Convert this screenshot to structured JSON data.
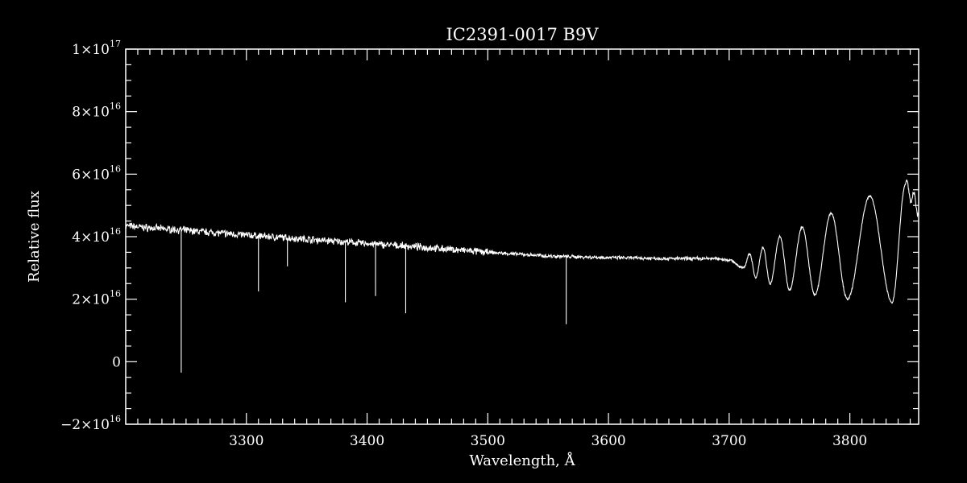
{
  "chart_data": {
    "type": "line",
    "title": "IC2391-0017  B9V",
    "xlabel": "Wavelength, Å",
    "ylabel": "Relative flux",
    "xlim": [
      3200,
      3857
    ],
    "ylim": [
      -2e+16,
      1e+17
    ],
    "grid": false,
    "x_ticks": [
      {
        "value": 3300,
        "label": "3300"
      },
      {
        "value": 3400,
        "label": "3400"
      },
      {
        "value": 3500,
        "label": "3500"
      },
      {
        "value": 3600,
        "label": "3600"
      },
      {
        "value": 3700,
        "label": "3700"
      },
      {
        "value": 3800,
        "label": "3800"
      }
    ],
    "y_ticks": [
      {
        "value": 1e+17,
        "mantissa": "1",
        "times": "×10",
        "exp": "17"
      },
      {
        "value": 8e+16,
        "mantissa": "8",
        "times": "×10",
        "exp": "16"
      },
      {
        "value": 6e+16,
        "mantissa": "6",
        "times": "×10",
        "exp": "16"
      },
      {
        "value": 4e+16,
        "mantissa": "4",
        "times": "×10",
        "exp": "16"
      },
      {
        "value": 2e+16,
        "mantissa": "2",
        "times": "×10",
        "exp": "16"
      },
      {
        "value": 0,
        "mantissa": "0",
        "times": "",
        "exp": ""
      },
      {
        "value": -2e+16,
        "mantissa": "−2",
        "times": "×10",
        "exp": "16"
      }
    ],
    "series": [
      {
        "continuum": [
          [
            3200,
            4.35e+16
          ],
          [
            3220,
            4.28e+16
          ],
          [
            3250,
            4.2e+16
          ],
          [
            3300,
            4.05e+16
          ],
          [
            3350,
            3.92e+16
          ],
          [
            3400,
            3.78e+16
          ],
          [
            3450,
            3.65e+16
          ],
          [
            3500,
            3.5e+16
          ],
          [
            3550,
            3.38e+16
          ],
          [
            3600,
            3.33e+16
          ],
          [
            3650,
            3.3e+16
          ],
          [
            3690,
            3.3e+16
          ],
          [
            3700,
            3.25e+16
          ]
        ],
        "absorption_lines": [
          {
            "x": 3246,
            "min": -3500000000000000.0
          },
          {
            "x": 3310,
            "min": 2.25e+16
          },
          {
            "x": 3334,
            "min": 3.05e+16
          },
          {
            "x": 3382,
            "min": 1.9e+16
          },
          {
            "x": 3407,
            "min": 2.1e+16
          },
          {
            "x": 3432,
            "min": 1.55e+16
          },
          {
            "x": 3565,
            "min": 1.2e+16
          }
        ],
        "balmer_series": [
          {
            "x": 3712,
            "min": 3e+16,
            "peak": 3.45e+16
          },
          {
            "x": 3722,
            "min": 2.7e+16,
            "peak": 3.65e+16
          },
          {
            "x": 3734,
            "min": 2.5e+16,
            "peak": 4e+16
          },
          {
            "x": 3750,
            "min": 2.3e+16,
            "peak": 4.3e+16
          },
          {
            "x": 3771,
            "min": 2.15e+16,
            "peak": 4.75e+16
          },
          {
            "x": 3798,
            "min": 2e+16,
            "peak": 5.3e+16
          },
          {
            "x": 3835,
            "min": 1.9e+16,
            "peak": 5.65e+16
          },
          {
            "x": 3857,
            "min": 4.9e+16,
            "peak": 5.7e+16
          }
        ]
      }
    ]
  }
}
